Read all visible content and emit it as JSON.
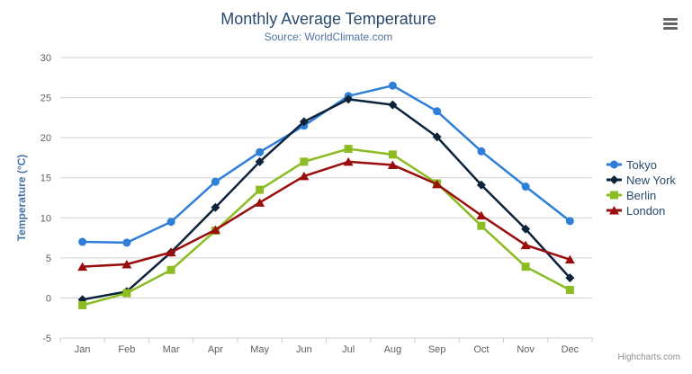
{
  "chart_data": {
    "type": "line",
    "title": "Monthly Average Temperature",
    "subtitle": "Source: WorldClimate.com",
    "xlabel": "",
    "ylabel": "Temperature (°C)",
    "categories": [
      "Jan",
      "Feb",
      "Mar",
      "Apr",
      "May",
      "Jun",
      "Jul",
      "Aug",
      "Sep",
      "Oct",
      "Nov",
      "Dec"
    ],
    "ylim": [
      -5,
      30
    ],
    "ytick_step": 5,
    "grid": true,
    "legend_position": "right",
    "series": [
      {
        "name": "Tokyo",
        "color": "#2f7ed8",
        "marker": "circle",
        "values": [
          7.0,
          6.9,
          9.5,
          14.5,
          18.2,
          21.5,
          25.2,
          26.5,
          23.3,
          18.3,
          13.9,
          9.6
        ]
      },
      {
        "name": "New York",
        "color": "#0d233a",
        "marker": "diamond",
        "values": [
          -0.2,
          0.8,
          5.7,
          11.3,
          17.0,
          22.0,
          24.8,
          24.1,
          20.1,
          14.1,
          8.6,
          2.5
        ]
      },
      {
        "name": "Berlin",
        "color": "#8bbc21",
        "marker": "square",
        "values": [
          -0.9,
          0.6,
          3.5,
          8.4,
          13.5,
          17.0,
          18.6,
          17.9,
          14.3,
          9.0,
          3.9,
          1.0
        ]
      },
      {
        "name": "London",
        "color": "#9a0d0d",
        "marker": "triangle",
        "values": [
          3.9,
          4.2,
          5.7,
          8.5,
          11.9,
          15.2,
          17.0,
          16.6,
          14.2,
          10.3,
          6.6,
          4.8
        ]
      }
    ]
  },
  "styles": {
    "grid_color": "#d0d0d0",
    "axis_line_color": "#c0d0e0",
    "tick_label_color": "#606060",
    "title_color": "#274b6d",
    "subtitle_color": "#4d759e",
    "y_title_color": "#4572a7",
    "legend_text_color": "#274b6d",
    "credits_color": "#909090"
  },
  "credits": {
    "label": "Highcharts.com"
  }
}
